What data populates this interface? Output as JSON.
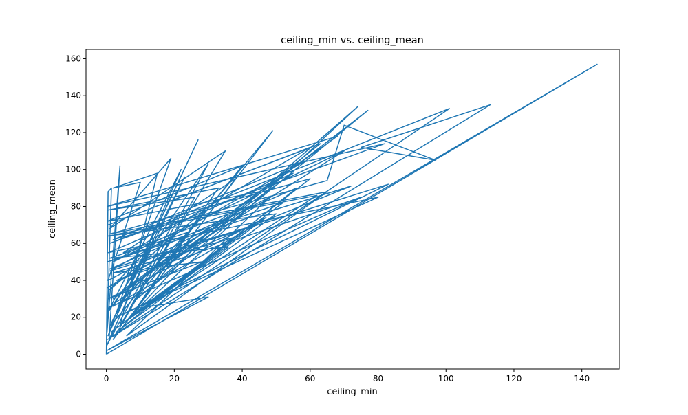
{
  "chart_data": {
    "type": "line",
    "title": "ceiling_min vs. ceiling_mean",
    "xlabel": "ceiling_min",
    "ylabel": "ceiling_mean",
    "xlim": [
      -6,
      151
    ],
    "ylim": [
      -8,
      165
    ],
    "x_ticks": [
      0,
      20,
      40,
      60,
      80,
      100,
      120,
      140
    ],
    "y_ticks": [
      0,
      20,
      40,
      60,
      80,
      100,
      120,
      140,
      160
    ],
    "grid": false,
    "series": [
      {
        "color": "#1f77b4",
        "points": [
          [
            0,
            0
          ],
          [
            0.5,
            88
          ],
          [
            1.5,
            90
          ],
          [
            0.2,
            12
          ],
          [
            4,
            102
          ],
          [
            0.8,
            8
          ],
          [
            23,
            96
          ],
          [
            3,
            22
          ],
          [
            27,
            116
          ],
          [
            1,
            15
          ],
          [
            49,
            121
          ],
          [
            6,
            18
          ],
          [
            74,
            134
          ],
          [
            9,
            30
          ],
          [
            77,
            132
          ],
          [
            12,
            40
          ],
          [
            63,
            114
          ],
          [
            0.5,
            70
          ],
          [
            60,
            112
          ],
          [
            2,
            50
          ],
          [
            70,
            110
          ],
          [
            5,
            35
          ],
          [
            68,
            118
          ],
          [
            0.3,
            80
          ],
          [
            82,
            114
          ],
          [
            1,
            60
          ],
          [
            101,
            133
          ],
          [
            0.4,
            8
          ],
          [
            113,
            135
          ],
          [
            75,
            112
          ],
          [
            97,
            105
          ],
          [
            70,
            124
          ],
          [
            65,
            94
          ],
          [
            2,
            62
          ],
          [
            58,
            104
          ],
          [
            1,
            45
          ],
          [
            83,
            92
          ],
          [
            3,
            20
          ],
          [
            80,
            85
          ],
          [
            0.6,
            55
          ],
          [
            55,
            98
          ],
          [
            2,
            30
          ],
          [
            45,
            88
          ],
          [
            0.3,
            72
          ],
          [
            40,
            102
          ],
          [
            8,
            28
          ],
          [
            35,
            110
          ],
          [
            1,
            68
          ],
          [
            19,
            106
          ],
          [
            0.5,
            10
          ],
          [
            22,
            100
          ],
          [
            0.2,
            22
          ],
          [
            30,
            103
          ],
          [
            4,
            15
          ],
          [
            15,
            98
          ],
          [
            2,
            90
          ],
          [
            10,
            93
          ],
          [
            0.5,
            40
          ],
          [
            48,
            85
          ],
          [
            6,
            10
          ],
          [
            65,
            88
          ],
          [
            0.8,
            65
          ],
          [
            60,
            95
          ],
          [
            1.5,
            12
          ],
          [
            52,
            82
          ],
          [
            0.3,
            50
          ],
          [
            72,
            91
          ],
          [
            3,
            40
          ],
          [
            75,
            85
          ],
          [
            0.5,
            25
          ],
          [
            42,
            80
          ],
          [
            5,
            55
          ],
          [
            38,
            95
          ],
          [
            2,
            8
          ],
          [
            26,
            85
          ],
          [
            0.4,
            78
          ],
          [
            33,
            90
          ],
          [
            7,
            20
          ],
          [
            29,
            78
          ],
          [
            1,
            35
          ],
          [
            20,
            72
          ],
          [
            0.2,
            5
          ],
          [
            14,
            62
          ],
          [
            2,
            26
          ],
          [
            44,
            70
          ],
          [
            0.8,
            46
          ],
          [
            56,
            90
          ],
          [
            3,
            12
          ],
          [
            50,
            76
          ],
          [
            0.5,
            64
          ],
          [
            62,
            86
          ],
          [
            9,
            22
          ],
          [
            36,
            58
          ],
          [
            1,
            52
          ],
          [
            24,
            66
          ],
          [
            4,
            28
          ],
          [
            18,
            55
          ],
          [
            0.3,
            36
          ],
          [
            31,
            68
          ],
          [
            6,
            18
          ],
          [
            47,
            74
          ],
          [
            0.5,
            30
          ],
          [
            28,
            50
          ],
          [
            2,
            44
          ],
          [
            39,
            64
          ],
          [
            10,
            25
          ],
          [
            30,
            31
          ],
          [
            0.2,
            2
          ],
          [
            144.5,
            157
          ],
          [
            0,
            0
          ]
        ]
      }
    ]
  }
}
